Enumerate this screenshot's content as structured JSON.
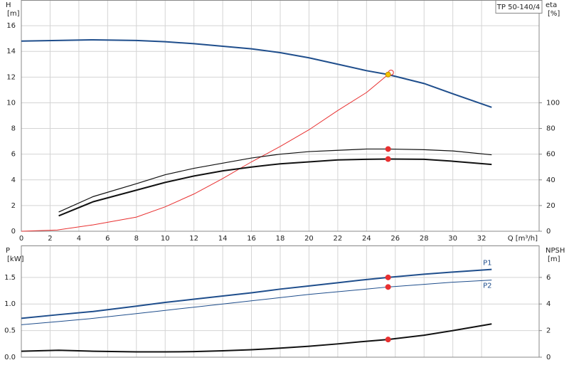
{
  "chart_data": [
    {
      "type": "line",
      "title": "TP 50-140/4",
      "ylabel": "H",
      "yunit": "[m]",
      "y2label": "eta",
      "y2unit": "[%]",
      "xlabel": "Q [m³/h]",
      "xlim": [
        0,
        36
      ],
      "xticks": [
        0,
        2,
        4,
        6,
        8,
        10,
        12,
        14,
        16,
        18,
        20,
        22,
        24,
        26,
        28,
        30,
        32
      ],
      "ylim": [
        0,
        18
      ],
      "yticks": [
        0,
        2,
        4,
        6,
        8,
        10,
        12,
        14,
        16
      ],
      "y2lim": [
        0,
        180
      ],
      "y2ticks": [
        0,
        20,
        40,
        60,
        80,
        100
      ],
      "grid": true,
      "series": [
        {
          "color": "#1f4e8c",
          "width": 2,
          "x": [
            0,
            2.5,
            5,
            8,
            10,
            12,
            14,
            16,
            18,
            20,
            22,
            24,
            25.5,
            28,
            30,
            32.7
          ],
          "values": [
            14.8,
            14.85,
            14.9,
            14.85,
            14.75,
            14.6,
            14.4,
            14.2,
            13.9,
            13.5,
            13.0,
            12.5,
            12.2,
            11.5,
            10.7,
            9.65
          ]
        },
        {
          "color": "#e83030",
          "width": 1,
          "axis": "y2",
          "x": [
            0,
            2.5,
            5,
            8,
            10,
            12,
            14,
            16,
            18,
            20,
            22,
            24,
            25.5
          ],
          "values": [
            0,
            1,
            5,
            11,
            19,
            29,
            41,
            54,
            66,
            79,
            94,
            108,
            122
          ]
        },
        {
          "color": "#111111",
          "width": 1.2,
          "axis": "y2",
          "x": [
            2.6,
            5,
            8,
            10,
            12,
            14,
            16,
            18,
            20,
            22,
            24,
            25.5,
            28,
            30,
            32.7
          ],
          "values": [
            15,
            27,
            37,
            44,
            49,
            53,
            57,
            60,
            62,
            63,
            64,
            64,
            63.5,
            62.5,
            59.5
          ]
        },
        {
          "color": "#111111",
          "width": 2,
          "axis": "y2",
          "x": [
            2.6,
            5,
            8,
            10,
            12,
            14,
            16,
            18,
            20,
            22,
            24,
            25.5,
            28,
            30,
            32.7
          ],
          "values": [
            12,
            23,
            32,
            38,
            43,
            47,
            50,
            52.5,
            54,
            55.5,
            56,
            56.2,
            56,
            54.5,
            52
          ]
        },
        {
          "color": "#e83030",
          "style": "dot",
          "axis": "y2",
          "x": [
            25.5,
            25.5
          ],
          "values": [
            64,
            56.2
          ]
        },
        {
          "color": "#e83030",
          "style": "ring",
          "x": [
            25.7
          ],
          "values": [
            12.35
          ]
        },
        {
          "color": "#f5c400",
          "style": "dot",
          "x": [
            25.5
          ],
          "values": [
            12.2
          ]
        }
      ]
    },
    {
      "type": "line",
      "ylabel": "P",
      "yunit": "[kW]",
      "y2label": "NPSH",
      "y2unit": "[m]",
      "xlim": [
        0,
        36
      ],
      "ylim": [
        0,
        2.1
      ],
      "yticks": [
        {
          "value": 0,
          "label": "0.0"
        },
        0.5,
        {
          "value": 1,
          "label": "1.0"
        },
        1.5
      ],
      "y2lim": [
        0,
        8.4
      ],
      "y2ticks": [
        0,
        2,
        4,
        6
      ],
      "grid": true,
      "series": [
        {
          "name": "P1",
          "color": "#1f4e8c",
          "width": 2,
          "x": [
            0,
            2.6,
            5,
            8,
            10,
            12,
            14,
            16,
            18,
            20,
            22,
            24,
            25.5,
            28,
            30,
            32.7
          ],
          "values": [
            0.73,
            0.8,
            0.86,
            0.96,
            1.03,
            1.09,
            1.15,
            1.21,
            1.28,
            1.34,
            1.4,
            1.46,
            1.5,
            1.56,
            1.6,
            1.65
          ]
        },
        {
          "name": "P2",
          "color": "#1f4e8c",
          "width": 1,
          "x": [
            0,
            2.6,
            5,
            8,
            10,
            12,
            14,
            16,
            18,
            20,
            22,
            24,
            25.5,
            28,
            30,
            32.7
          ],
          "values": [
            0.61,
            0.67,
            0.73,
            0.82,
            0.88,
            0.94,
            1.0,
            1.06,
            1.12,
            1.18,
            1.23,
            1.28,
            1.32,
            1.37,
            1.41,
            1.45
          ]
        },
        {
          "color": "#111111",
          "width": 2,
          "axis": "y2",
          "x": [
            0,
            2.6,
            5,
            8,
            10,
            12,
            14,
            16,
            18,
            20,
            22,
            24,
            25.5,
            28,
            30,
            32.7
          ],
          "values": [
            0.45,
            0.52,
            0.45,
            0.4,
            0.4,
            0.42,
            0.48,
            0.56,
            0.68,
            0.82,
            1.0,
            1.2,
            1.33,
            1.65,
            2.0,
            2.5
          ]
        },
        {
          "color": "#e83030",
          "style": "dot",
          "x": [
            25.5,
            25.5
          ],
          "values": [
            1.5,
            1.32
          ]
        },
        {
          "color": "#e83030",
          "style": "dot",
          "axis": "y2",
          "x": [
            25.5
          ],
          "values": [
            1.33
          ]
        }
      ]
    }
  ]
}
